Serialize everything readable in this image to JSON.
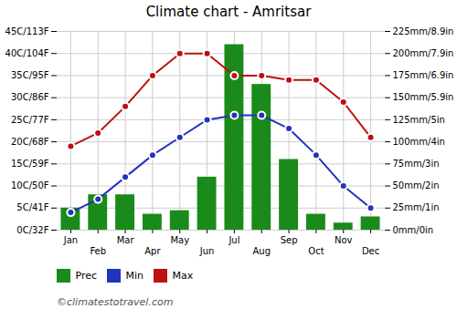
{
  "chart_data": {
    "type": "bar",
    "title": "Climate chart - Amritsar",
    "categories": [
      "Jan",
      "Feb",
      "Mar",
      "Apr",
      "May",
      "Jun",
      "Jul",
      "Aug",
      "Sep",
      "Oct",
      "Nov",
      "Dec"
    ],
    "series": [
      {
        "name": "Prec",
        "type": "bar",
        "axis": "y2",
        "color": "#1a8a1a",
        "values": [
          25,
          40,
          40,
          18,
          22,
          60,
          210,
          165,
          80,
          18,
          8,
          15
        ]
      },
      {
        "name": "Min",
        "type": "line",
        "color": "#2233bb",
        "marker": "circle",
        "values": [
          4,
          7,
          12,
          17,
          21,
          25,
          26,
          26,
          23,
          17,
          10,
          5
        ]
      },
      {
        "name": "Max",
        "type": "line",
        "color": "#bb1111",
        "marker": "circle",
        "values": [
          19,
          22,
          28,
          35,
          40,
          40,
          35,
          35,
          34,
          34,
          29,
          21
        ]
      }
    ],
    "ylim": [
      0,
      45
    ],
    "yticks": [
      {
        "value": 0,
        "label": "0C/32F"
      },
      {
        "value": 5,
        "label": "5C/41F"
      },
      {
        "value": 10,
        "label": "10C/50F"
      },
      {
        "value": 15,
        "label": "15C/59F"
      },
      {
        "value": 20,
        "label": "20C/68F"
      },
      {
        "value": 25,
        "label": "25C/77F"
      },
      {
        "value": 30,
        "label": "30C/86F"
      },
      {
        "value": 35,
        "label": "35C/95F"
      },
      {
        "value": 40,
        "label": "40C/104F"
      },
      {
        "value": 45,
        "label": "45C/113F"
      }
    ],
    "y2lim": [
      0,
      225
    ],
    "y2ticks": [
      {
        "value": 0,
        "label": "0mm/0in"
      },
      {
        "value": 25,
        "label": "25mm/1in"
      },
      {
        "value": 50,
        "label": "50mm/2in"
      },
      {
        "value": 75,
        "label": "75mm/3in"
      },
      {
        "value": 100,
        "label": "100mm/4in"
      },
      {
        "value": 125,
        "label": "125mm/5in"
      },
      {
        "value": 150,
        "label": "150mm/5.9in"
      },
      {
        "value": 175,
        "label": "175mm/6.9in"
      },
      {
        "value": 200,
        "label": "200mm/7.9in"
      },
      {
        "value": 225,
        "label": "225mm/8.9in"
      }
    ],
    "grid": true,
    "legend": "bottom",
    "annotations": [
      "©climatestotravel.com"
    ]
  }
}
